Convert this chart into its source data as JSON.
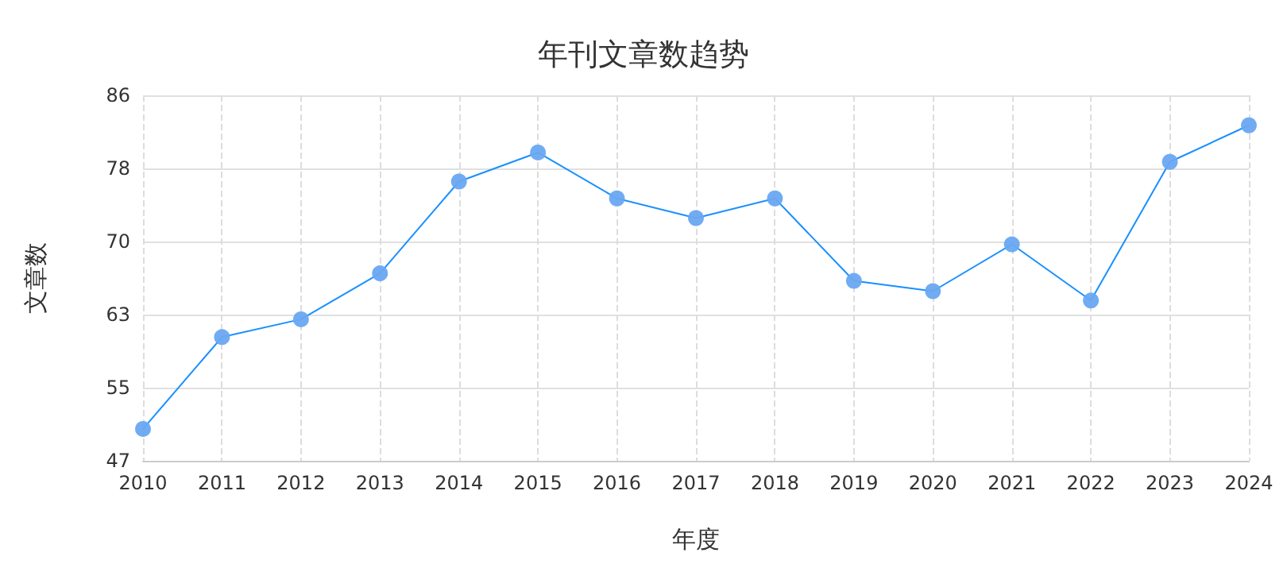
{
  "chart_data": {
    "type": "line",
    "title": "年刊文章数趋势",
    "xlabel": "年度",
    "ylabel": "文章数",
    "categories": [
      "2010",
      "2011",
      "2012",
      "2013",
      "2014",
      "2015",
      "2016",
      "2017",
      "2018",
      "2019",
      "2020",
      "2021",
      "2022",
      "2023",
      "2024"
    ],
    "series": [
      {
        "color": "#1890ff",
        "values": [
          50.4,
          60.2,
          62.1,
          67.0,
          76.8,
          79.9,
          75.0,
          72.9,
          75.0,
          66.2,
          65.1,
          70.1,
          64.1,
          78.9,
          82.8
        ]
      }
    ],
    "ylim": [
      47,
      86
    ],
    "yticks": [
      {
        "value": 47,
        "label": "47"
      },
      {
        "value": 54.8,
        "label": "55"
      },
      {
        "value": 62.6,
        "label": "63"
      },
      {
        "value": 70.4,
        "label": "70"
      },
      {
        "value": 78.2,
        "label": "78"
      },
      {
        "value": 86,
        "label": "86"
      }
    ],
    "grid": true,
    "marker": "circle",
    "line_style": "solid"
  }
}
